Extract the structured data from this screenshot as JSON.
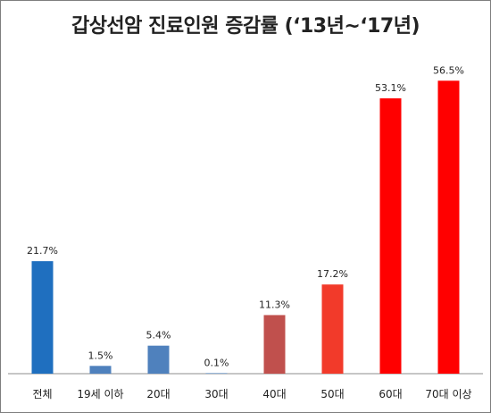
{
  "chart_data": {
    "type": "bar",
    "title": "갑상선암 진료인원 증감률 (‘13년~‘17년)",
    "xlabel": "",
    "ylabel": "",
    "ylim": [
      0,
      60
    ],
    "grid": false,
    "legend": "none",
    "categories": [
      "전체",
      "19세 이하",
      "20대",
      "30대",
      "40대",
      "50대",
      "60대",
      "70대 이상"
    ],
    "values": [
      21.7,
      1.5,
      5.4,
      0.1,
      11.3,
      17.2,
      53.1,
      56.5
    ],
    "data_labels": [
      "21.7%",
      "1.5%",
      "5.4%",
      "0.1%",
      "11.3%",
      "17.2%",
      "53.1%",
      "56.5%"
    ],
    "colors": [
      "#1f6fbf",
      "#4f81bd",
      "#4f81bd",
      "#4f81bd",
      "#c0504d",
      "#f23a2a",
      "#ff0000",
      "#ff0000"
    ]
  }
}
